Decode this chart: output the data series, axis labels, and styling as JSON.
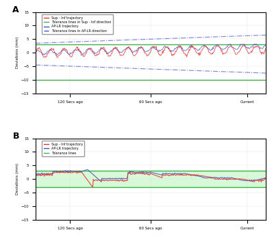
{
  "panel_A_label": "A",
  "panel_B_label": "B",
  "xlabel_ticks": [
    "120 Secs ago",
    "60 Secs ago",
    "Current"
  ],
  "ylabel": "Deviations (mm)",
  "ylim": [
    -15,
    15
  ],
  "yticks": [
    -15,
    -10,
    -5,
    0,
    5,
    10,
    15
  ],
  "sup_inf_color": "#e83030",
  "aplr_color": "#3b4fc8",
  "tol_sup_inf_color": "#3db34a",
  "tol_aplr_color": "#3b4fc8",
  "legend_A": [
    "Sup - Inf trajectory",
    "Tolerance lines in Sup - Inf direction",
    "AP-LR trajectory",
    "Tolerance lines in AP-LR direction"
  ],
  "legend_B": [
    "Sup - Inf trajectory",
    "AP-LR trajectory",
    "Tolerance lines"
  ],
  "tol_si_upper": 3.0,
  "tol_si_lower": -10.0,
  "tol_B_upper": 3.0,
  "tol_B_lower": -3.0
}
